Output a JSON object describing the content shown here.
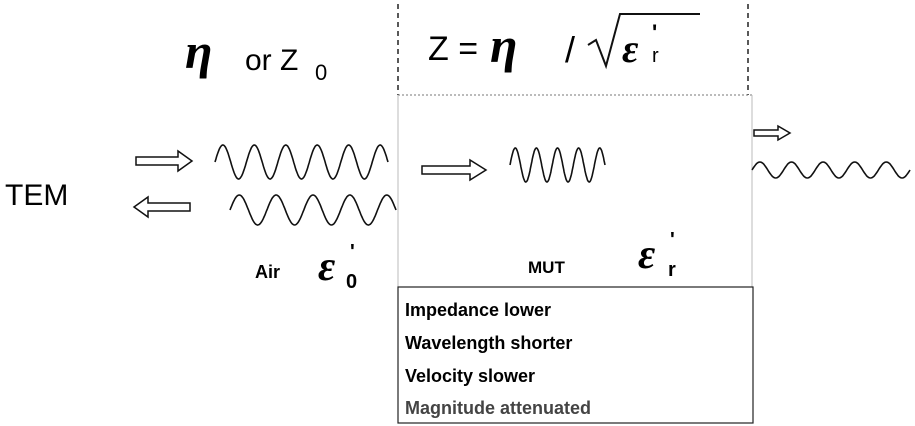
{
  "left_impedance": {
    "symbol": "η",
    "text": "or Z",
    "subscript": "0"
  },
  "right_impedance": {
    "lhs": "Z =",
    "symbol": "η",
    "slash": "/",
    "root_symbol": "ε",
    "prime": "'",
    "subscript": "r"
  },
  "wave_label": "TEM",
  "air": {
    "label": "Air",
    "symbol": "ε",
    "prime": "'",
    "subscript": "0"
  },
  "mut": {
    "label": "MUT",
    "symbol": "ε",
    "prime": "'",
    "subscript": "r"
  },
  "effects": [
    "Impedance lower",
    "Wavelength shorter",
    "Velocity slower",
    "Magnitude attenuated"
  ]
}
